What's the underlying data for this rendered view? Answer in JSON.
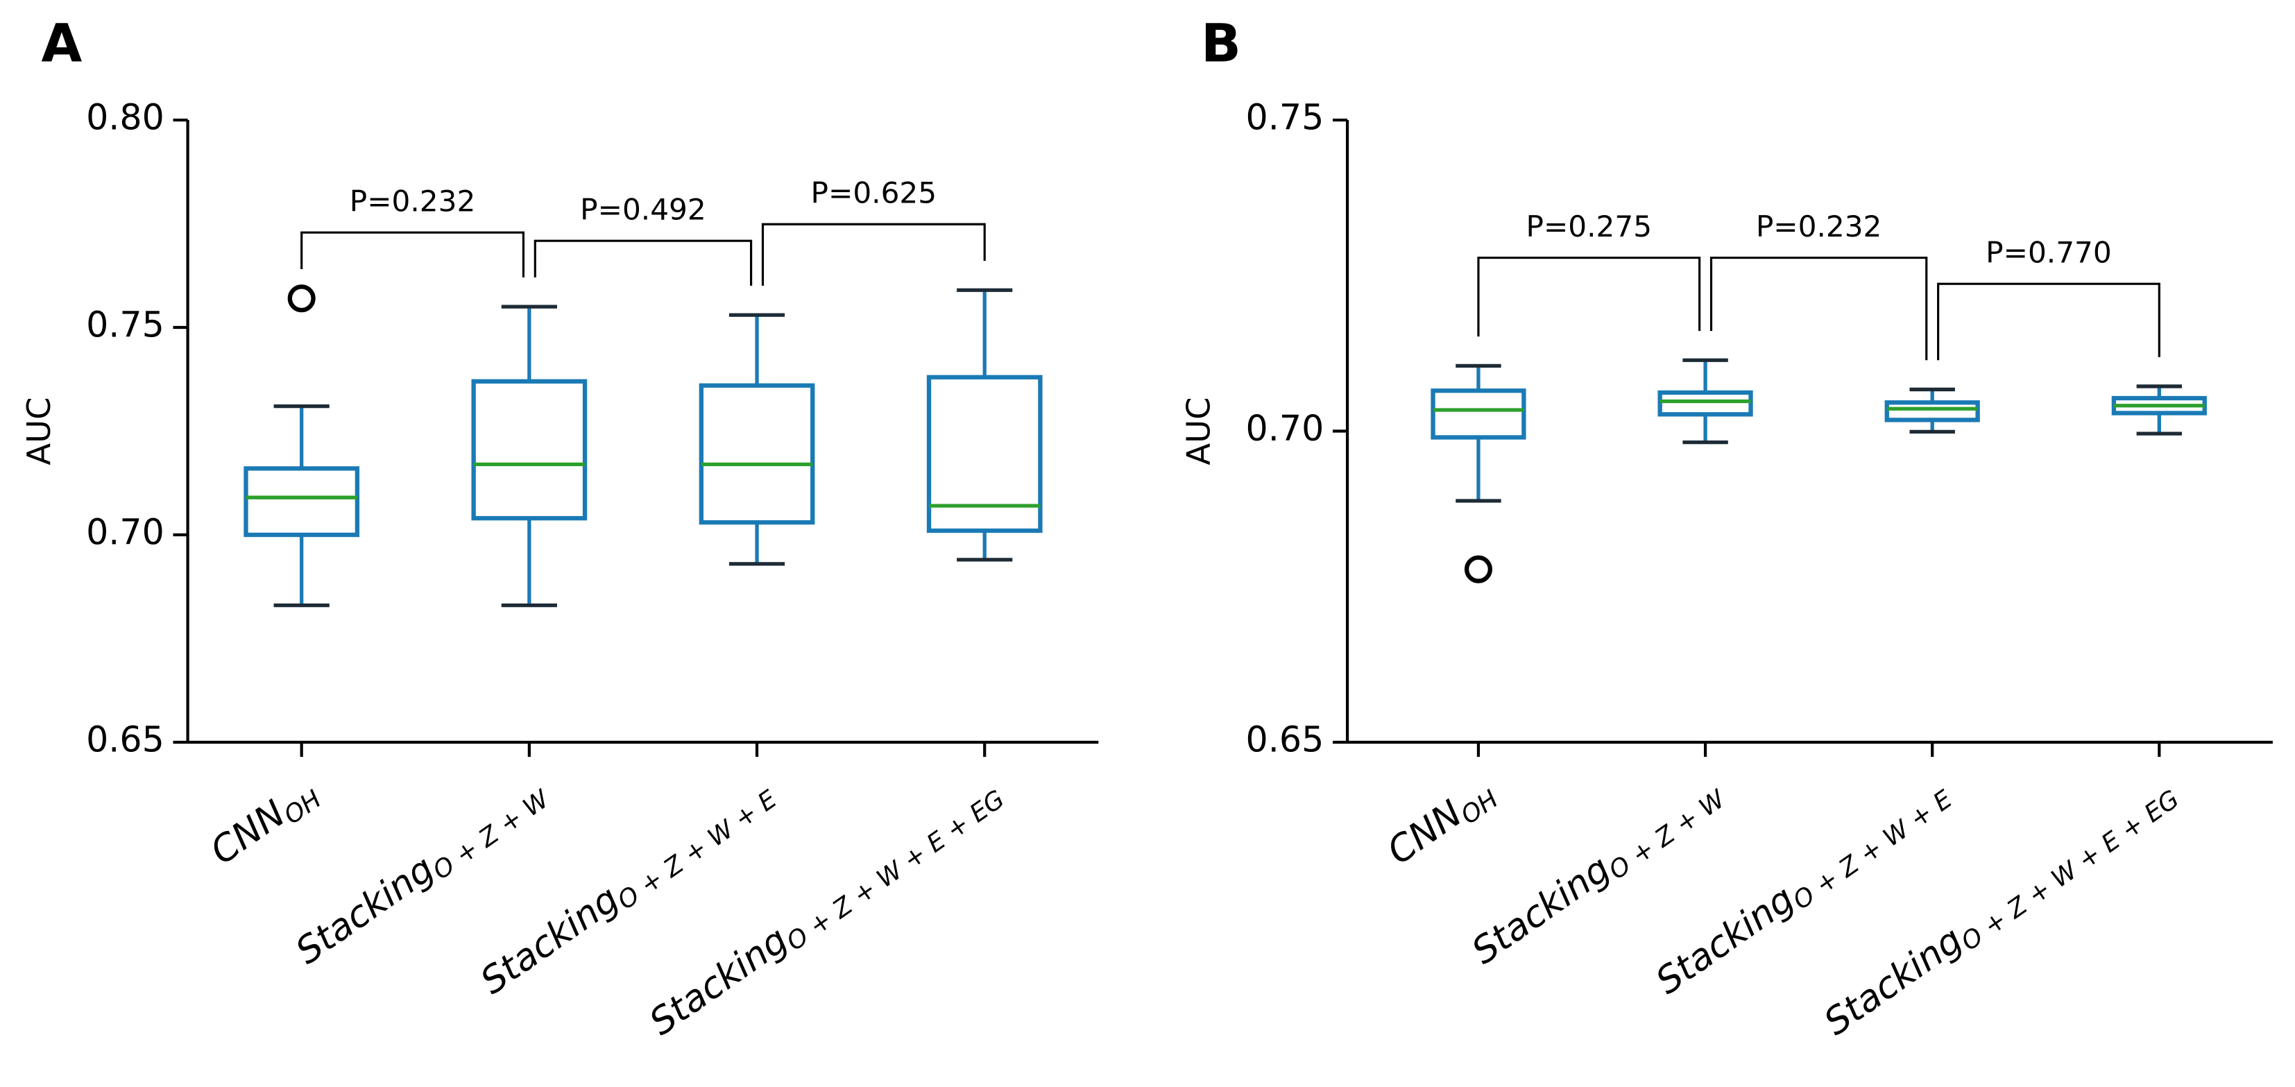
{
  "chart_data": [
    {
      "type": "boxplot",
      "panel_label": "A",
      "y_label": "AUC",
      "categories": [
        "CNN",
        "Stacking",
        "Stacking",
        "Stacking"
      ],
      "category_subscripts": [
        "OH",
        "O + Z + W",
        "O + Z + W + E",
        "O + Z + W + E + EG"
      ],
      "boxes": [
        {
          "min": 0.683,
          "q1": 0.7,
          "median": 0.709,
          "q3": 0.716,
          "max": 0.731,
          "outliers": [
            0.757
          ]
        },
        {
          "min": 0.683,
          "q1": 0.704,
          "median": 0.717,
          "q3": 0.737,
          "max": 0.755,
          "outliers": []
        },
        {
          "min": 0.693,
          "q1": 0.703,
          "median": 0.717,
          "q3": 0.736,
          "max": 0.753,
          "outliers": []
        },
        {
          "min": 0.694,
          "q1": 0.701,
          "median": 0.707,
          "q3": 0.738,
          "max": 0.759,
          "outliers": []
        }
      ],
      "comparisons": [
        {
          "from": 0,
          "to": 1,
          "label": "P=0.232"
        },
        {
          "from": 1,
          "to": 2,
          "label": "P=0.492"
        },
        {
          "from": 2,
          "to": 3,
          "label": "P=0.625"
        }
      ],
      "box_color": "#1a7ab5",
      "median_color": "#2ca02c",
      "cap_color": "#1d2b36",
      "ylim": [
        0.65,
        0.8
      ],
      "yticks": [
        0.65,
        {
          "value": 0.7,
          "label": "0.70"
        },
        0.75,
        {
          "value": 0.8,
          "label": "0.80"
        }
      ]
    },
    {
      "type": "boxplot",
      "panel_label": "B",
      "y_label": "AUC",
      "categories": [
        "CNN",
        "Stacking",
        "Stacking",
        "Stacking"
      ],
      "category_subscripts": [
        "OH",
        "O + Z + W",
        "O + Z + W + E",
        "O + Z + W + E + EG"
      ],
      "boxes": [
        {
          "min": 0.6888,
          "q1": 0.699,
          "median": 0.7034,
          "q3": 0.7065,
          "max": 0.7105,
          "outliers": [
            0.6778
          ]
        },
        {
          "min": 0.6982,
          "q1": 0.7027,
          "median": 0.7048,
          "q3": 0.7062,
          "max": 0.7114,
          "outliers": []
        },
        {
          "min": 0.6999,
          "q1": 0.7018,
          "median": 0.7036,
          "q3": 0.7046,
          "max": 0.7067,
          "outliers": []
        },
        {
          "min": 0.6996,
          "q1": 0.7029,
          "median": 0.7041,
          "q3": 0.7053,
          "max": 0.7072,
          "outliers": []
        }
      ],
      "comparisons": [
        {
          "from": 0,
          "to": 1,
          "label": "P=0.275"
        },
        {
          "from": 1,
          "to": 2,
          "label": "P=0.232"
        },
        {
          "from": 2,
          "to": 3,
          "label": "P=0.770"
        }
      ],
      "box_color": "#1a7ab5",
      "median_color": "#2ca02c",
      "cap_color": "#1d2b36",
      "ylim": [
        0.65,
        0.75
      ],
      "yticks": [
        0.65,
        {
          "value": 0.7,
          "label": "0.70"
        },
        0.75
      ]
    }
  ]
}
